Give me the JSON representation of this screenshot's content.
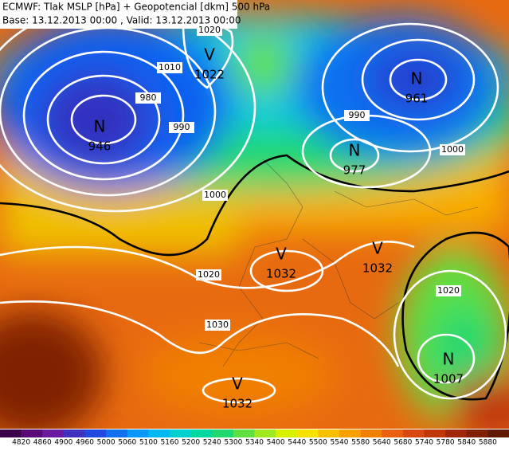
{
  "header": {
    "title": "ECMWF: Tlak MSLP [hPa] + Geopotencial [dkm] 500 hPa",
    "subtitle": "Base: 13.12.2013 00:00 , Valid: 13.12.2013 00:00"
  },
  "centers": [
    {
      "symbol": "N",
      "value": 946
    },
    {
      "symbol": "V",
      "value": 1022
    },
    {
      "symbol": "N",
      "value": 961
    },
    {
      "symbol": "N",
      "value": 977
    },
    {
      "symbol": "V",
      "value": 1032
    },
    {
      "symbol": "V",
      "value": 1032
    },
    {
      "symbol": "N",
      "value": 1007
    },
    {
      "symbol": "V",
      "value": 1032
    }
  ],
  "isobar_labels": [
    1020,
    1010,
    980,
    990,
    1000,
    1020,
    1030,
    990,
    1000,
    1020
  ],
  "colorbar": {
    "labels": [
      4820,
      4860,
      4900,
      4960,
      5000,
      5060,
      5100,
      5160,
      5200,
      5240,
      5300,
      5340,
      5400,
      5440,
      5500,
      5540,
      5580,
      5640,
      5680,
      5740,
      5780,
      5840,
      5880
    ],
    "colors": [
      "#3a0048",
      "#5a0a78",
      "#6a1aa0",
      "#4030c0",
      "#2048e0",
      "#1070f0",
      "#0898f8",
      "#00b8f0",
      "#00d0d0",
      "#00d8a0",
      "#20d870",
      "#60e040",
      "#a0e820",
      "#d8f000",
      "#f8e000",
      "#f8c000",
      "#f8a000",
      "#f08000",
      "#e86010",
      "#d84810",
      "#c03808",
      "#a02808",
      "#802000",
      "#601800"
    ]
  }
}
